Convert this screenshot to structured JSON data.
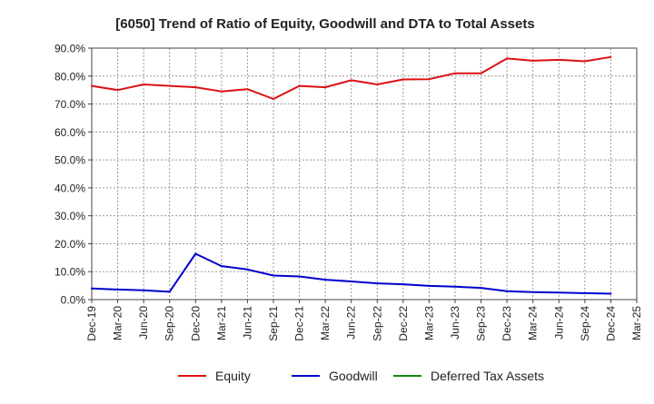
{
  "chart_data": {
    "type": "line",
    "title": "[6050]  Trend of Ratio of Equity, Goodwill and DTA to Total Assets",
    "xlabel": "",
    "ylabel": "",
    "ylim": [
      0,
      90
    ],
    "y_ticks": [
      "0.0%",
      "10.0%",
      "20.0%",
      "30.0%",
      "40.0%",
      "50.0%",
      "60.0%",
      "70.0%",
      "80.0%",
      "90.0%"
    ],
    "x_ticks": [
      "Dec-19",
      "Mar-20",
      "Jun-20",
      "Sep-20",
      "Dec-20",
      "Mar-21",
      "Jun-21",
      "Sep-21",
      "Dec-21",
      "Mar-22",
      "Jun-22",
      "Sep-22",
      "Dec-22",
      "Mar-23",
      "Jun-23",
      "Sep-23",
      "Dec-23",
      "Mar-24",
      "Jun-24",
      "Sep-24",
      "Dec-24",
      "Mar-25"
    ],
    "grid": true,
    "legend_position": "bottom",
    "series": [
      {
        "name": "Equity",
        "color": "#dd1111",
        "values": [
          76.5,
          75.0,
          77.0,
          76.5,
          76.0,
          74.5,
          75.3,
          71.8,
          76.5,
          76.0,
          78.5,
          77.0,
          78.8,
          78.9,
          81.0,
          81.0,
          86.3,
          85.5,
          85.8,
          85.3,
          86.8,
          null
        ]
      },
      {
        "name": "Goodwill",
        "color": "#0000cc",
        "values": [
          4.0,
          3.6,
          3.3,
          2.8,
          16.4,
          12.0,
          10.8,
          8.6,
          8.3,
          7.1,
          6.5,
          5.8,
          5.5,
          4.9,
          4.6,
          4.2,
          3.0,
          2.7,
          2.5,
          2.3,
          2.1,
          null
        ]
      },
      {
        "name": "Deferred Tax Assets",
        "color": "#118811",
        "values": [
          null,
          null,
          null,
          null,
          null,
          null,
          null,
          null,
          null,
          null,
          null,
          null,
          null,
          null,
          null,
          null,
          null,
          null,
          null,
          null,
          null,
          null
        ]
      }
    ]
  }
}
